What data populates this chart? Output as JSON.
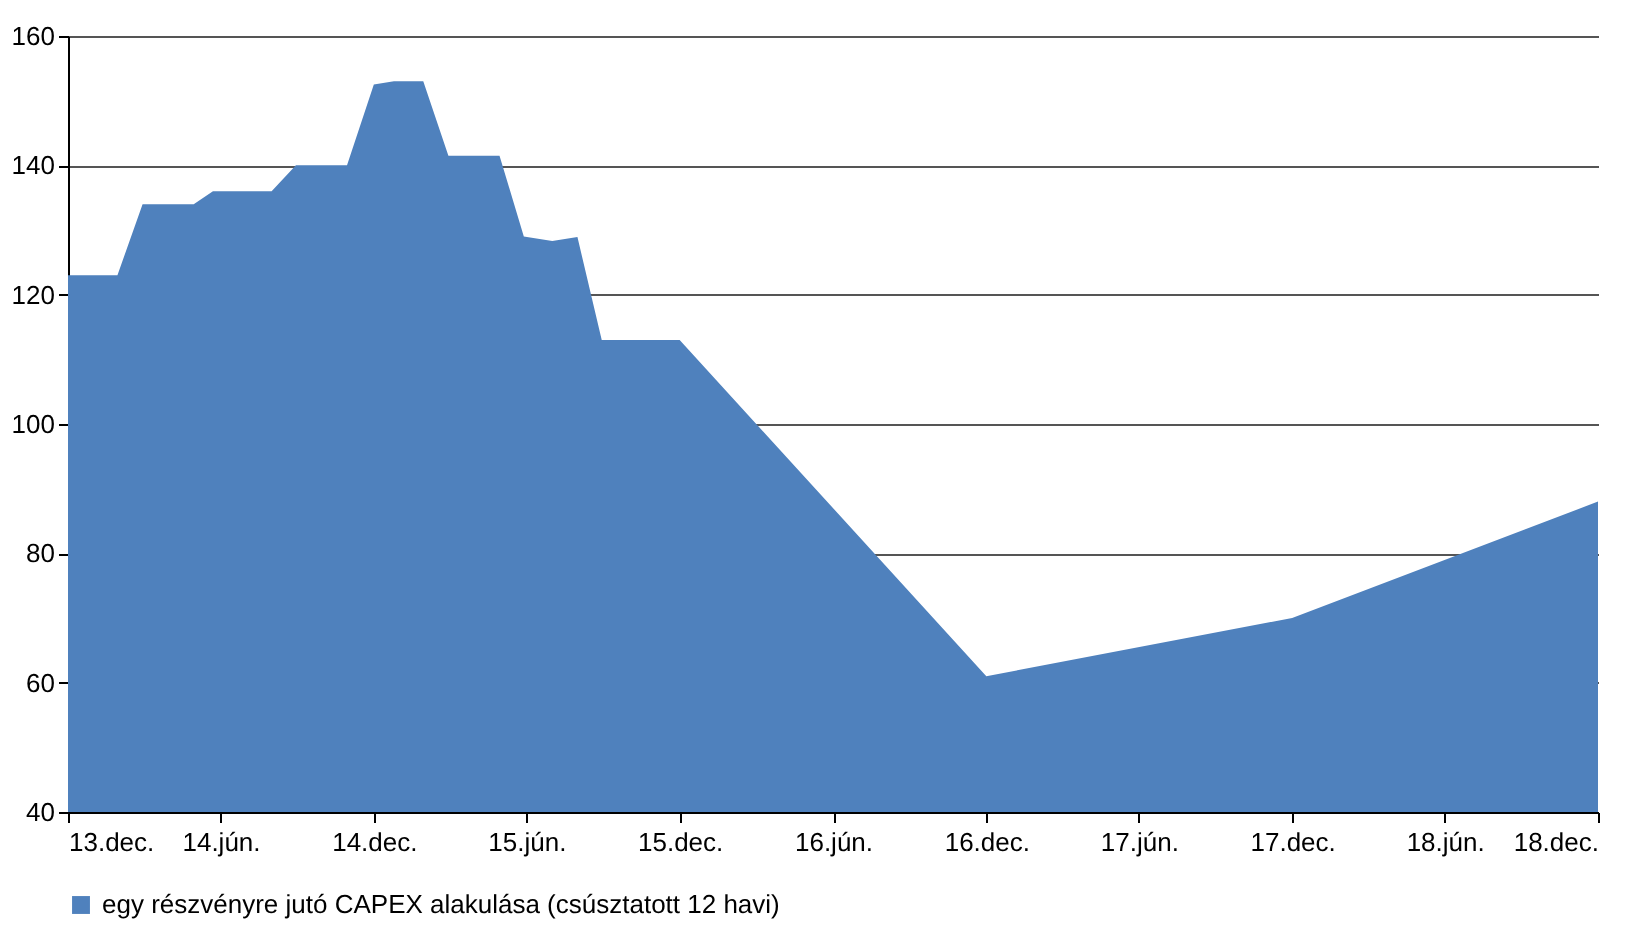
{
  "chart_data": {
    "type": "area",
    "x": [
      "2013-12-01",
      "2014-01-29",
      "2014-02-28",
      "2014-04-30",
      "2014-05-23",
      "2014-08-01",
      "2014-08-30",
      "2014-10-30",
      "2014-12-01",
      "2014-12-25",
      "2015-01-29",
      "2015-02-28",
      "2015-03-27",
      "2015-04-30",
      "2015-05-29",
      "2015-07-02",
      "2015-08-01",
      "2015-08-30",
      "2015-12-01",
      "2016-12-01",
      "2017-12-01",
      "2018-12-01"
    ],
    "series": [
      {
        "name": "egy részvényre jutó CAPEX alakulása (csúsztatott 12 havi)",
        "color": "#4f81bd",
        "values": [
          123,
          123,
          134,
          134,
          136,
          136,
          140,
          140,
          152.5,
          153,
          153,
          141.5,
          141.5,
          141.5,
          129,
          128.3,
          128.9,
          113,
          113,
          61,
          70,
          88
        ]
      }
    ],
    "xlim": [
      "2013-12-01",
      "2018-12-01"
    ],
    "xticks": [
      {
        "value": "2013-12-01",
        "label": "13.dec."
      },
      {
        "value": "2014-06-01",
        "label": "14.jún."
      },
      {
        "value": "2014-12-01",
        "label": "14.dec."
      },
      {
        "value": "2015-06-01",
        "label": "15.jún."
      },
      {
        "value": "2015-12-01",
        "label": "15.dec."
      },
      {
        "value": "2016-06-01",
        "label": "16.jún."
      },
      {
        "value": "2016-12-01",
        "label": "16.dec."
      },
      {
        "value": "2017-06-01",
        "label": "17.jún."
      },
      {
        "value": "2017-12-01",
        "label": "17.dec."
      },
      {
        "value": "2018-06-01",
        "label": "18.jún."
      },
      {
        "value": "2018-12-01",
        "label": "18.dec."
      }
    ],
    "ylim": [
      40,
      160
    ],
    "yticks": [
      40,
      60,
      80,
      100,
      120,
      140,
      160
    ],
    "grid": "y",
    "legend": "bottom"
  }
}
